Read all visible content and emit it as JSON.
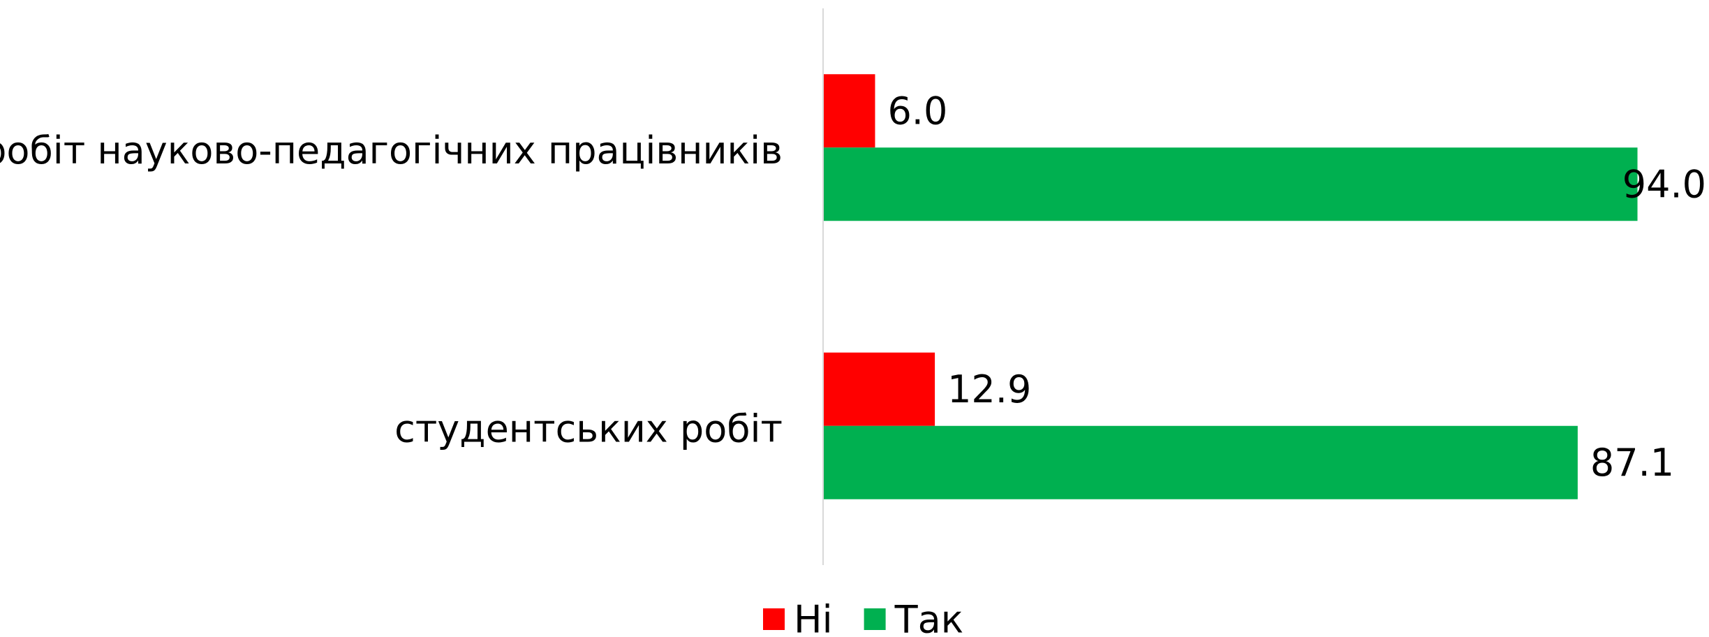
{
  "chart_data": {
    "type": "hbar",
    "categories": [
      "робіт науково-педагогічних працівників",
      "студентських робіт"
    ],
    "series": [
      {
        "name": "Ні",
        "color": "#ff0000",
        "values": [
          6.0,
          12.9
        ],
        "value_labels": [
          "6.0",
          "12.9"
        ]
      },
      {
        "name": "Так",
        "color": "#00b050",
        "values": [
          94.0,
          87.1
        ],
        "value_labels": [
          "94.0",
          "87.1"
        ]
      }
    ],
    "xlim": [
      0,
      100
    ],
    "legend": "bottom"
  }
}
